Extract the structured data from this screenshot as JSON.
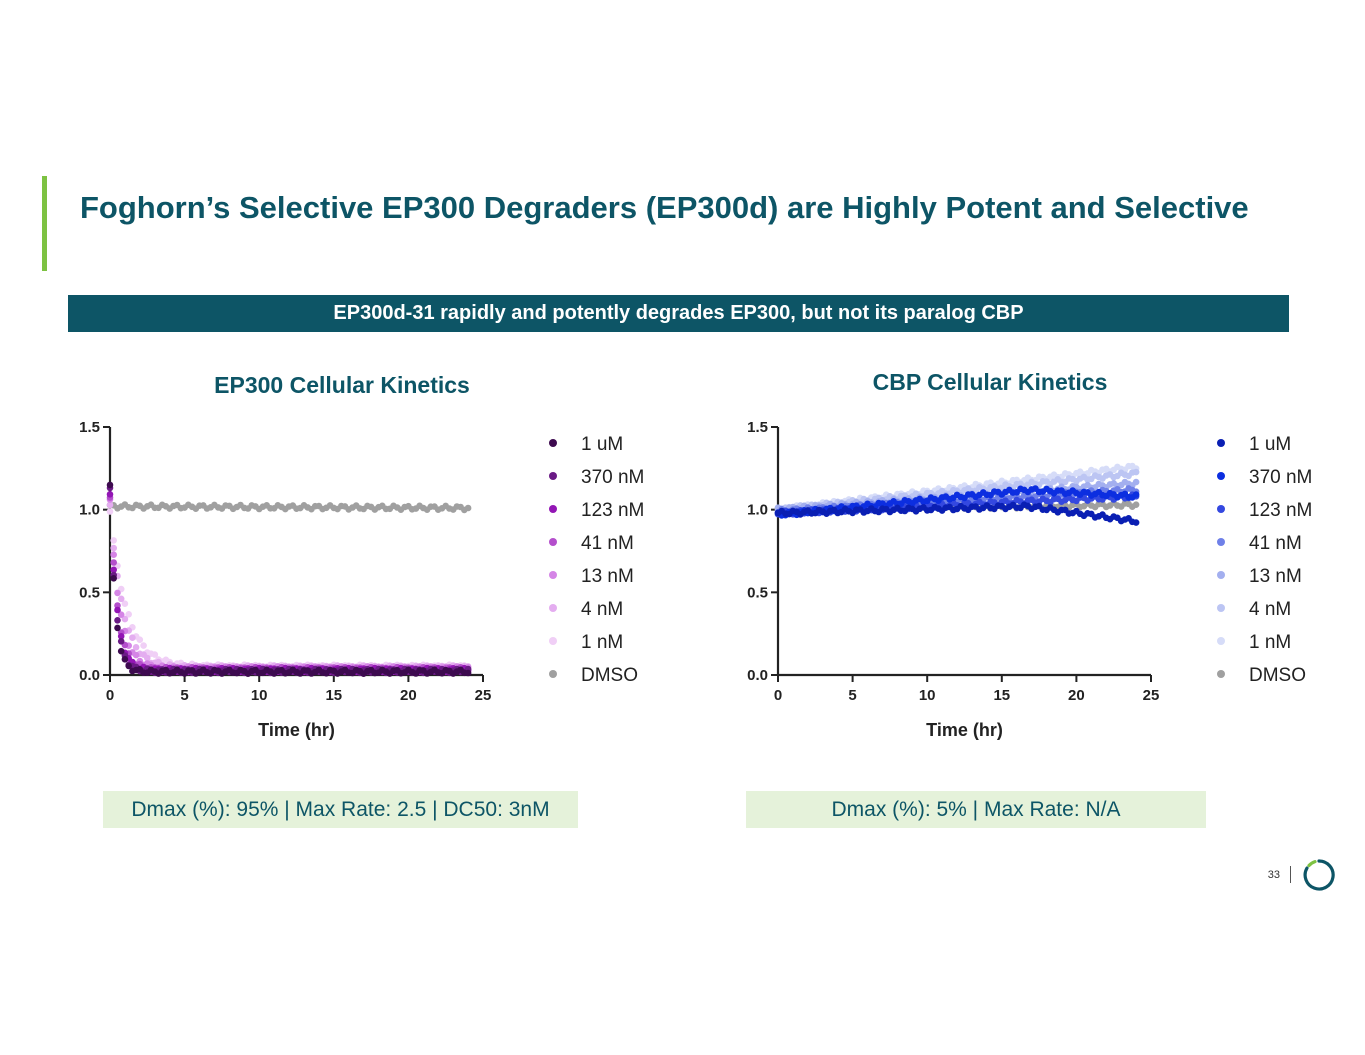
{
  "slide": {
    "title": "Foghorn’s Selective EP300 Degraders (EP300d) are Highly Potent and Selective",
    "banner": "EP300d-31 rapidly and potently degrades EP300, but not its paralog CBP",
    "page_number": "33",
    "accent_color": "#7dc242",
    "brand_color": "#0d5566"
  },
  "panels": {
    "ep300": {
      "title": "EP300 Cellular Kinetics",
      "metrics": "Dmax (%): 95% | Max Rate: 2.5 | DC50: 3nM"
    },
    "cbp": {
      "title": "CBP Cellular  Kinetics",
      "metrics": "Dmax (%): 5% | Max Rate: N/A"
    }
  },
  "chart_data": [
    {
      "type": "scatter",
      "title": "EP300 Cellular Kinetics",
      "xlabel": "Time (hr)",
      "ylabel": "",
      "xlim": [
        0,
        25
      ],
      "ylim": [
        0,
        1.5
      ],
      "xticks": [
        "0",
        "5",
        "10",
        "15",
        "20",
        "25"
      ],
      "yticks": [
        "0.0",
        "0.5",
        "1.0",
        "1.5"
      ],
      "series": [
        {
          "name": "1 uM",
          "color": "#3d0a4f",
          "model": "decay",
          "start": 1.15,
          "plateau": 0.02,
          "tau": 0.35,
          "end_x": 24
        },
        {
          "name": "370 nM",
          "color": "#6a1a85",
          "model": "decay",
          "start": 1.12,
          "plateau": 0.025,
          "tau": 0.4,
          "end_x": 24
        },
        {
          "name": "123 nM",
          "color": "#9316b5",
          "model": "decay",
          "start": 1.1,
          "plateau": 0.03,
          "tau": 0.45,
          "end_x": 24
        },
        {
          "name": "41 nM",
          "color": "#b44fcc",
          "model": "decay",
          "start": 1.08,
          "plateau": 0.035,
          "tau": 0.5,
          "end_x": 24
        },
        {
          "name": "13 nM",
          "color": "#d585e6",
          "model": "decay",
          "start": 1.05,
          "plateau": 0.04,
          "tau": 0.65,
          "end_x": 24
        },
        {
          "name": "4 nM",
          "color": "#e4adf0",
          "model": "decay",
          "start": 1.03,
          "plateau": 0.045,
          "tau": 0.85,
          "end_x": 24
        },
        {
          "name": "1 nM",
          "color": "#f0cff6",
          "model": "decay",
          "start": 1.0,
          "plateau": 0.05,
          "tau": 1.1,
          "end_x": 24
        },
        {
          "name": "DMSO",
          "color": "#a0a0a0",
          "model": "linear",
          "start": 1.02,
          "end": 1.01,
          "end_x": 24
        }
      ]
    },
    {
      "type": "scatter",
      "title": "CBP Cellular  Kinetics",
      "xlabel": "Time (hr)",
      "ylabel": "",
      "xlim": [
        0,
        25
      ],
      "ylim": [
        0,
        1.5
      ],
      "xticks": [
        "0",
        "5",
        "10",
        "15",
        "20",
        "25"
      ],
      "yticks": [
        "0.0",
        "0.5",
        "1.0",
        "1.5"
      ],
      "series": [
        {
          "name": "1 uM",
          "color": "#0a1fb3",
          "model": "bump",
          "start": 0.98,
          "peak": 1.02,
          "end": 0.93,
          "end_x": 24
        },
        {
          "name": "370 nM",
          "color": "#0c2ee0",
          "model": "bump",
          "start": 0.97,
          "peak": 1.12,
          "end": 1.08,
          "end_x": 24
        },
        {
          "name": "123 nM",
          "color": "#3448e0",
          "model": "linear",
          "start": 0.98,
          "end": 1.08,
          "end_x": 24
        },
        {
          "name": "41 nM",
          "color": "#6f80e8",
          "model": "linear",
          "start": 0.99,
          "end": 1.12,
          "end_x": 24
        },
        {
          "name": "13 nM",
          "color": "#a3afef",
          "model": "linear",
          "start": 1.0,
          "end": 1.16,
          "end_x": 24
        },
        {
          "name": "4 nM",
          "color": "#bcc5f3",
          "model": "linear",
          "start": 1.0,
          "end": 1.22,
          "end_x": 24
        },
        {
          "name": "1 nM",
          "color": "#d6dcf8",
          "model": "linear",
          "start": 1.0,
          "end": 1.26,
          "end_x": 24
        },
        {
          "name": "DMSO",
          "color": "#a0a0a0",
          "model": "linear",
          "start": 1.0,
          "end": 1.03,
          "end_x": 24
        }
      ]
    }
  ]
}
